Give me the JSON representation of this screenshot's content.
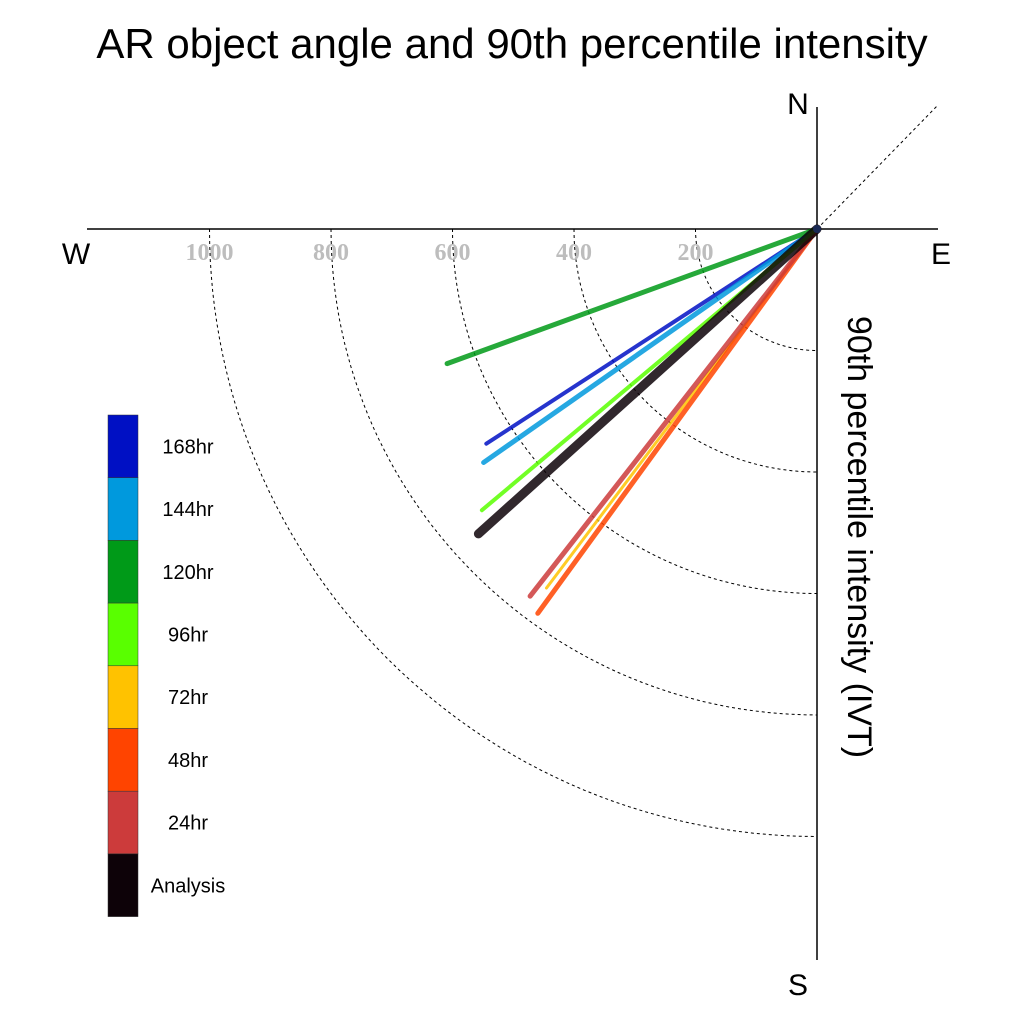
{
  "chart_data": {
    "type": "polar-line",
    "title": "AR object angle and 90th percentile intensity",
    "radial_label": "90th percentile intensity (IVT)",
    "compass": {
      "n": "N",
      "e": "E",
      "s": "S",
      "w": "W"
    },
    "radial_ticks": [
      200,
      400,
      600,
      800,
      1000
    ],
    "radial_tick_labels": [
      "200",
      "400",
      "600",
      "800",
      "1000"
    ],
    "rmax": 1200,
    "diagonal_reference": "dotted line at 45° through origin",
    "series": [
      {
        "name": "Analysis",
        "color": "#0d0208",
        "angle_deg": 222,
        "intensity": 750,
        "width": 9
      },
      {
        "name": "24hr",
        "color": "#cc3b3b",
        "angle_deg": 232,
        "intensity": 767,
        "width": 5
      },
      {
        "name": "48hr",
        "color": "#ff4400",
        "angle_deg": 234,
        "intensity": 782,
        "width": 5
      },
      {
        "name": "72hr",
        "color": "#ffc200",
        "angle_deg": 233,
        "intensity": 740,
        "width": 3
      },
      {
        "name": "96hr",
        "color": "#59ff00",
        "angle_deg": 220,
        "intensity": 720,
        "width": 4
      },
      {
        "name": "120hr",
        "color": "#009a18",
        "angle_deg": 200,
        "intensity": 648,
        "width": 5
      },
      {
        "name": "144hr",
        "color": "#0099dd",
        "angle_deg": 215,
        "intensity": 670,
        "width": 5
      },
      {
        "name": "168hr",
        "color": "#0010c4",
        "angle_deg": 213,
        "intensity": 649,
        "width": 4
      }
    ],
    "legend": {
      "placement": "left",
      "order": [
        "168hr",
        "144hr",
        "120hr",
        "96hr",
        "72hr",
        "48hr",
        "24hr",
        "Analysis"
      ]
    }
  }
}
